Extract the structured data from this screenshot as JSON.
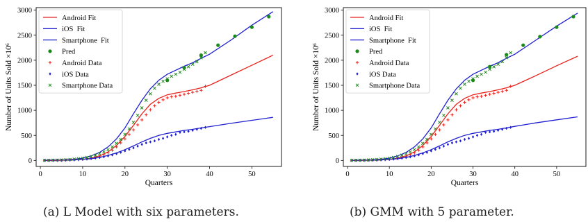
{
  "chart_data": [
    {
      "type": "line",
      "caption": "(a) L Model with six parameters.",
      "xlabel": "Quarters",
      "ylabel": "Number of Units Sold ×10⁶",
      "xlim": [
        -1,
        57
      ],
      "ylim": [
        -120,
        3050
      ],
      "xticks": [
        0,
        10,
        20,
        30,
        40,
        50
      ],
      "yticks": [
        0,
        500,
        1000,
        1500,
        2000,
        2500,
        3000
      ],
      "legend_position": "top-left",
      "series": [
        {
          "name": "Android Fit",
          "kind": "line",
          "color": "#e8221c",
          "x": [
            1,
            5,
            8,
            10,
            12,
            14,
            16,
            18,
            20,
            22,
            24,
            26,
            28,
            30,
            32,
            34,
            36,
            38,
            40,
            45,
            50,
            55
          ],
          "y": [
            1,
            4,
            12,
            22,
            45,
            90,
            170,
            300,
            480,
            700,
            930,
            1120,
            1240,
            1310,
            1345,
            1375,
            1410,
            1450,
            1500,
            1700,
            1900,
            2100
          ]
        },
        {
          "name": "iOS  Fit",
          "kind": "line",
          "color": "#1f1fd0",
          "x": [
            1,
            5,
            8,
            10,
            12,
            14,
            16,
            18,
            20,
            22,
            24,
            26,
            28,
            30,
            32,
            34,
            36,
            38,
            40,
            45,
            50,
            55
          ],
          "y": [
            1,
            5,
            12,
            20,
            35,
            60,
            100,
            150,
            215,
            290,
            370,
            440,
            500,
            540,
            570,
            600,
            620,
            650,
            675,
            740,
            800,
            860
          ]
        },
        {
          "name": "Smartphone  Fit",
          "kind": "line",
          "color": "#1f1fd0",
          "x": [
            1,
            5,
            8,
            10,
            12,
            14,
            16,
            18,
            20,
            22,
            24,
            26,
            28,
            30,
            32,
            34,
            36,
            38,
            40,
            45,
            50,
            55
          ],
          "y": [
            2,
            8,
            22,
            45,
            90,
            160,
            270,
            430,
            650,
            930,
            1200,
            1430,
            1600,
            1720,
            1800,
            1880,
            1950,
            2040,
            2120,
            2400,
            2700,
            2970
          ]
        },
        {
          "name": "Pred",
          "kind": "dot",
          "color": "#1a8a1a",
          "x": [
            30,
            34,
            38,
            42,
            46,
            50,
            54
          ],
          "y": [
            1600,
            1850,
            2100,
            2300,
            2480,
            2660,
            2870
          ]
        },
        {
          "name": "Android Data",
          "kind": "plus",
          "color": "#e8221c",
          "x": [
            1,
            2,
            3,
            4,
            5,
            6,
            7,
            8,
            9,
            10,
            11,
            12,
            13,
            14,
            15,
            16,
            17,
            18,
            19,
            20,
            21,
            22,
            23,
            24,
            25,
            26,
            27,
            28,
            29,
            30,
            31,
            32,
            33,
            34,
            35,
            36,
            37,
            38,
            39
          ],
          "y": [
            1,
            1,
            2,
            3,
            4,
            6,
            8,
            12,
            16,
            22,
            32,
            45,
            62,
            85,
            115,
            150,
            205,
            270,
            350,
            430,
            520,
            610,
            710,
            810,
            910,
            1010,
            1090,
            1160,
            1210,
            1250,
            1270,
            1280,
            1300,
            1320,
            1340,
            1360,
            1380,
            1400,
            1480
          ]
        },
        {
          "name": "iOS Data",
          "kind": "diamond",
          "color": "#1f1fd0",
          "x": [
            1,
            2,
            3,
            4,
            5,
            6,
            7,
            8,
            9,
            10,
            11,
            12,
            13,
            14,
            15,
            16,
            17,
            18,
            19,
            20,
            21,
            22,
            23,
            24,
            25,
            26,
            27,
            28,
            29,
            30,
            31,
            32,
            33,
            34,
            35,
            36,
            37,
            38,
            39
          ],
          "y": [
            1,
            2,
            3,
            4,
            5,
            7,
            9,
            12,
            16,
            20,
            26,
            35,
            46,
            58,
            72,
            90,
            110,
            135,
            160,
            190,
            220,
            250,
            285,
            320,
            350,
            370,
            390,
            420,
            440,
            470,
            500,
            520,
            560,
            570,
            580,
            600,
            620,
            640,
            660
          ]
        },
        {
          "name": "Smartphone Data",
          "kind": "cross",
          "color": "#1a8a1a",
          "x": [
            1,
            2,
            3,
            4,
            5,
            6,
            7,
            8,
            9,
            10,
            11,
            12,
            13,
            14,
            15,
            16,
            17,
            18,
            19,
            20,
            21,
            22,
            23,
            24,
            25,
            26,
            27,
            28,
            29,
            30,
            31,
            32,
            33,
            34,
            35,
            36,
            37,
            38,
            39
          ],
          "y": [
            2,
            3,
            5,
            7,
            10,
            14,
            19,
            26,
            34,
            45,
            60,
            80,
            105,
            135,
            170,
            215,
            270,
            340,
            420,
            520,
            630,
            760,
            900,
            1050,
            1200,
            1330,
            1440,
            1520,
            1580,
            1630,
            1680,
            1720,
            1760,
            1820,
            1870,
            1920,
            1970,
            2050,
            2150
          ]
        }
      ]
    },
    {
      "type": "line",
      "caption": "(b) GMM with 5 parameter.",
      "xlabel": "Quarters",
      "ylabel": "Number of Units Sold ×10⁶",
      "xlim": [
        -1,
        57
      ],
      "ylim": [
        -120,
        3050
      ],
      "xticks": [
        0,
        10,
        20,
        30,
        40,
        50
      ],
      "yticks": [
        0,
        500,
        1000,
        1500,
        2000,
        2500,
        3000
      ],
      "legend_position": "top-left",
      "series": [
        {
          "name": "Android Fit",
          "kind": "line",
          "color": "#e8221c",
          "x": [
            1,
            5,
            8,
            10,
            12,
            14,
            16,
            18,
            20,
            22,
            24,
            26,
            28,
            30,
            32,
            34,
            36,
            38,
            40,
            45,
            50,
            55
          ],
          "y": [
            1,
            4,
            12,
            22,
            45,
            90,
            170,
            300,
            480,
            700,
            930,
            1120,
            1240,
            1310,
            1345,
            1375,
            1410,
            1450,
            1500,
            1690,
            1890,
            2080
          ]
        },
        {
          "name": "iOS  Fit",
          "kind": "line",
          "color": "#1f1fd0",
          "x": [
            1,
            5,
            8,
            10,
            12,
            14,
            16,
            18,
            20,
            22,
            24,
            26,
            28,
            30,
            32,
            34,
            36,
            38,
            40,
            45,
            50,
            55
          ],
          "y": [
            1,
            5,
            12,
            20,
            35,
            60,
            100,
            150,
            215,
            290,
            370,
            440,
            500,
            540,
            570,
            600,
            620,
            650,
            680,
            750,
            810,
            870
          ]
        },
        {
          "name": "Smartphone  Fit",
          "kind": "line",
          "color": "#1f1fd0",
          "x": [
            1,
            5,
            8,
            10,
            12,
            14,
            16,
            18,
            20,
            22,
            24,
            26,
            28,
            30,
            32,
            34,
            36,
            38,
            40,
            45,
            50,
            55
          ],
          "y": [
            2,
            8,
            22,
            45,
            90,
            160,
            270,
            430,
            650,
            930,
            1200,
            1430,
            1600,
            1720,
            1800,
            1880,
            1950,
            2040,
            2120,
            2400,
            2680,
            2940
          ]
        },
        {
          "name": "Pred",
          "kind": "dot",
          "color": "#1a8a1a",
          "x": [
            30,
            34,
            38,
            42,
            46,
            50,
            54
          ],
          "y": [
            1600,
            1870,
            2110,
            2300,
            2470,
            2660,
            2870
          ]
        },
        {
          "name": "Android Data",
          "kind": "plus",
          "color": "#e8221c",
          "x": [
            1,
            2,
            3,
            4,
            5,
            6,
            7,
            8,
            9,
            10,
            11,
            12,
            13,
            14,
            15,
            16,
            17,
            18,
            19,
            20,
            21,
            22,
            23,
            24,
            25,
            26,
            27,
            28,
            29,
            30,
            31,
            32,
            33,
            34,
            35,
            36,
            37,
            38,
            39
          ],
          "y": [
            1,
            1,
            2,
            3,
            4,
            6,
            8,
            12,
            16,
            22,
            32,
            45,
            62,
            85,
            115,
            150,
            205,
            270,
            350,
            430,
            520,
            610,
            710,
            810,
            910,
            1010,
            1090,
            1160,
            1210,
            1250,
            1270,
            1280,
            1300,
            1320,
            1340,
            1360,
            1380,
            1400,
            1480
          ]
        },
        {
          "name": "iOS Data",
          "kind": "diamond",
          "color": "#1f1fd0",
          "x": [
            1,
            2,
            3,
            4,
            5,
            6,
            7,
            8,
            9,
            10,
            11,
            12,
            13,
            14,
            15,
            16,
            17,
            18,
            19,
            20,
            21,
            22,
            23,
            24,
            25,
            26,
            27,
            28,
            29,
            30,
            31,
            32,
            33,
            34,
            35,
            36,
            37,
            38,
            39
          ],
          "y": [
            1,
            2,
            3,
            4,
            5,
            7,
            9,
            12,
            16,
            20,
            26,
            35,
            46,
            58,
            72,
            90,
            110,
            135,
            160,
            190,
            220,
            250,
            285,
            320,
            350,
            370,
            390,
            420,
            440,
            470,
            500,
            520,
            560,
            570,
            580,
            600,
            620,
            640,
            660
          ]
        },
        {
          "name": "Smartphone Data",
          "kind": "cross",
          "color": "#1a8a1a",
          "x": [
            1,
            2,
            3,
            4,
            5,
            6,
            7,
            8,
            9,
            10,
            11,
            12,
            13,
            14,
            15,
            16,
            17,
            18,
            19,
            20,
            21,
            22,
            23,
            24,
            25,
            26,
            27,
            28,
            29,
            30,
            31,
            32,
            33,
            34,
            35,
            36,
            37,
            38,
            39
          ],
          "y": [
            2,
            3,
            5,
            7,
            10,
            14,
            19,
            26,
            34,
            45,
            60,
            80,
            105,
            135,
            170,
            215,
            270,
            340,
            420,
            520,
            630,
            760,
            900,
            1050,
            1200,
            1330,
            1440,
            1520,
            1580,
            1630,
            1680,
            1720,
            1760,
            1820,
            1870,
            1920,
            1970,
            2050,
            2150
          ]
        }
      ]
    }
  ]
}
